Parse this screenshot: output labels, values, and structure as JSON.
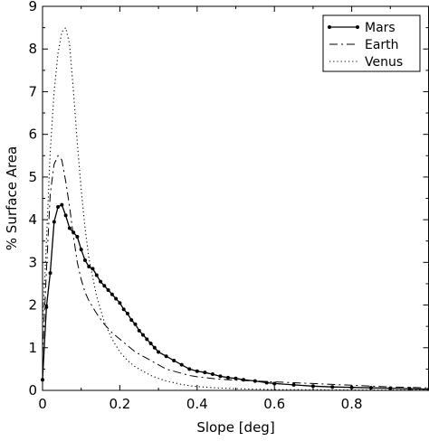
{
  "chart_data": {
    "type": "line",
    "xlabel": "Slope [deg]",
    "ylabel": "% Surface Area",
    "xlim": [
      0,
      1.0
    ],
    "ylim": [
      0,
      9
    ],
    "x_ticks": [
      0,
      0.2,
      0.4,
      0.6,
      0.8
    ],
    "x_tick_labels": [
      "0",
      "0.2",
      "0.4",
      "0.6",
      "0.8"
    ],
    "y_ticks": [
      0,
      1,
      2,
      3,
      4,
      5,
      6,
      7,
      8,
      9
    ],
    "y_tick_labels": [
      "0",
      "1",
      "2",
      "3",
      "4",
      "5",
      "6",
      "7",
      "8",
      "9"
    ],
    "grid": false,
    "legend_position": "top-right",
    "series": [
      {
        "name": "Mars",
        "style": "solid-markers",
        "color": "#000000",
        "x": [
          0.0,
          0.01,
          0.02,
          0.03,
          0.04,
          0.05,
          0.06,
          0.07,
          0.08,
          0.09,
          0.1,
          0.11,
          0.12,
          0.13,
          0.14,
          0.15,
          0.16,
          0.17,
          0.18,
          0.19,
          0.2,
          0.21,
          0.22,
          0.23,
          0.24,
          0.25,
          0.26,
          0.27,
          0.28,
          0.29,
          0.3,
          0.32,
          0.34,
          0.36,
          0.38,
          0.4,
          0.42,
          0.44,
          0.46,
          0.48,
          0.5,
          0.52,
          0.55,
          0.58,
          0.6,
          0.65,
          0.7,
          0.75,
          0.8,
          0.85,
          0.9,
          0.95,
          1.0
        ],
        "y": [
          0.25,
          1.95,
          2.75,
          3.95,
          4.3,
          4.35,
          4.1,
          3.8,
          3.7,
          3.6,
          3.3,
          3.05,
          2.9,
          2.85,
          2.7,
          2.55,
          2.45,
          2.35,
          2.25,
          2.15,
          2.05,
          1.9,
          1.8,
          1.65,
          1.55,
          1.4,
          1.3,
          1.2,
          1.1,
          1.0,
          0.9,
          0.8,
          0.7,
          0.6,
          0.5,
          0.45,
          0.42,
          0.38,
          0.33,
          0.3,
          0.28,
          0.25,
          0.22,
          0.18,
          0.16,
          0.13,
          0.1,
          0.08,
          0.07,
          0.06,
          0.05,
          0.04,
          0.03
        ]
      },
      {
        "name": "Earth",
        "style": "dash-dot",
        "color": "#000000",
        "x": [
          0.0,
          0.01,
          0.02,
          0.03,
          0.04,
          0.05,
          0.06,
          0.07,
          0.08,
          0.09,
          0.1,
          0.11,
          0.12,
          0.14,
          0.16,
          0.18,
          0.2,
          0.22,
          0.24,
          0.26,
          0.28,
          0.3,
          0.32,
          0.34,
          0.36,
          0.38,
          0.4,
          0.45,
          0.5,
          0.55,
          0.6,
          0.65,
          0.7,
          0.75,
          0.8,
          0.85,
          0.9,
          0.95,
          1.0
        ],
        "y": [
          0.8,
          2.8,
          4.6,
          5.3,
          5.5,
          5.4,
          4.9,
          4.3,
          3.6,
          3.0,
          2.6,
          2.3,
          2.1,
          1.8,
          1.55,
          1.35,
          1.2,
          1.05,
          0.9,
          0.8,
          0.7,
          0.6,
          0.5,
          0.45,
          0.4,
          0.35,
          0.32,
          0.27,
          0.24,
          0.22,
          0.2,
          0.18,
          0.16,
          0.14,
          0.12,
          0.1,
          0.08,
          0.07,
          0.06
        ]
      },
      {
        "name": "Venus",
        "style": "dotted",
        "color": "#000000",
        "x": [
          0.0,
          0.01,
          0.02,
          0.03,
          0.04,
          0.05,
          0.06,
          0.07,
          0.08,
          0.09,
          0.1,
          0.11,
          0.12,
          0.14,
          0.16,
          0.18,
          0.2,
          0.22,
          0.24,
          0.26,
          0.28,
          0.3,
          0.32,
          0.34,
          0.36,
          0.38,
          0.4,
          0.45,
          0.5,
          0.55,
          0.6,
          0.7,
          0.8,
          0.9,
          1.0
        ],
        "y": [
          1.5,
          3.5,
          5.6,
          7.0,
          7.9,
          8.4,
          8.5,
          8.1,
          7.0,
          5.8,
          4.7,
          3.8,
          3.1,
          2.2,
          1.6,
          1.2,
          0.9,
          0.7,
          0.55,
          0.45,
          0.35,
          0.28,
          0.22,
          0.18,
          0.14,
          0.11,
          0.09,
          0.06,
          0.04,
          0.03,
          0.02,
          0.015,
          0.01,
          0.01,
          0.01
        ]
      }
    ]
  }
}
